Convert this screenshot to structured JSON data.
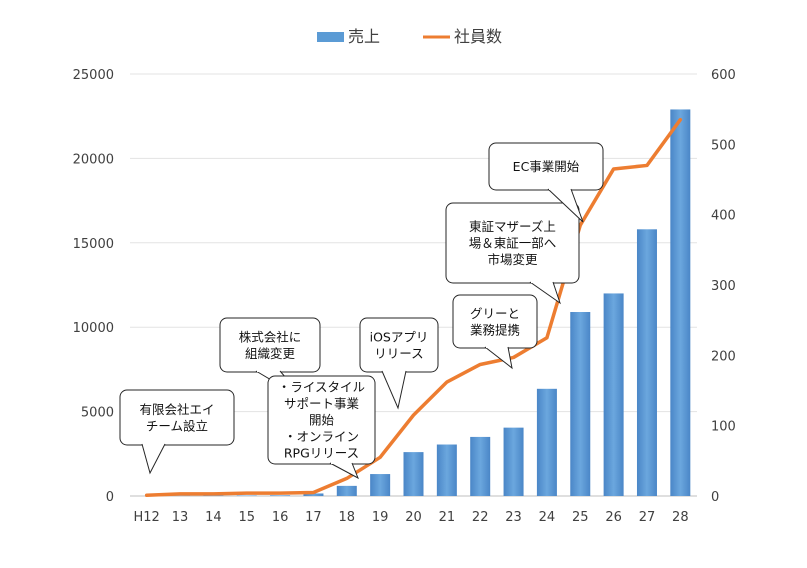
{
  "chart_data": {
    "type": "bar+line",
    "categories": [
      "H12",
      "13",
      "14",
      "15",
      "16",
      "17",
      "18",
      "19",
      "20",
      "21",
      "22",
      "23",
      "24",
      "25",
      "26",
      "27",
      "28"
    ],
    "series": [
      {
        "name": "売上",
        "type": "bar",
        "axis": "left",
        "values": [
          0,
          10,
          20,
          30,
          40,
          150,
          600,
          1300,
          2600,
          3050,
          3500,
          4050,
          6350,
          10900,
          12000,
          15800,
          22900
        ]
      },
      {
        "name": "社員数",
        "type": "line",
        "axis": "right",
        "values": [
          1,
          3,
          3,
          4,
          4,
          5,
          25,
          55,
          115,
          162,
          187,
          197,
          225,
          385,
          465,
          470,
          535
        ]
      }
    ],
    "left_axis": {
      "ticks": [
        "0",
        "5000",
        "10000",
        "15000",
        "20000",
        "25000"
      ],
      "ylim": [
        0,
        25000
      ]
    },
    "right_axis": {
      "ticks": [
        "0",
        "100",
        "200",
        "300",
        "400",
        "500",
        "600"
      ],
      "ylim": [
        0,
        600
      ]
    },
    "legend": {
      "position": "top-center"
    },
    "grid": true,
    "colors": {
      "bar": "#5b9bd5",
      "line": "#ed7d31"
    },
    "annotations": [
      {
        "lines": [
          "有限会社エイ",
          "チーム設立"
        ],
        "target": "H12"
      },
      {
        "lines": [
          "株式会社に",
          "組織変更"
        ],
        "target": "17"
      },
      {
        "lines": [
          "・ライスタイル",
          "サポート事業",
          "開始",
          "・オンライン",
          "RPGリリース"
        ],
        "target": "18"
      },
      {
        "lines": [
          "iOSアプリ",
          "リリース"
        ],
        "target": "20"
      },
      {
        "lines": [
          "グリーと",
          "業務提携"
        ],
        "target": "23"
      },
      {
        "lines": [
          "東証マザーズ上",
          "場＆東証一部へ",
          "市場変更"
        ],
        "target": "24"
      },
      {
        "lines": [
          "EC事業開始"
        ],
        "target": "25"
      }
    ]
  }
}
